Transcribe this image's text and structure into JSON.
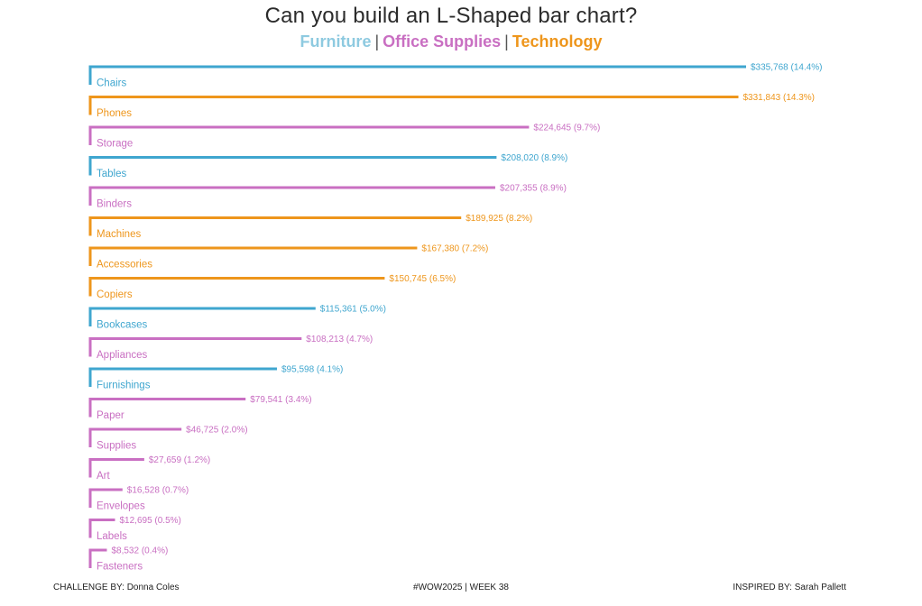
{
  "title": "Can you build an L-Shaped bar chart?",
  "legend": [
    {
      "name": "Furniture",
      "color": "#8ecae0"
    },
    {
      "name": "Office Supplies",
      "color": "#c96fc2"
    },
    {
      "name": "Technology",
      "color": "#ee961c"
    }
  ],
  "legend_separator": "|",
  "footer": {
    "left": "CHALLENGE BY: Donna Coles",
    "center": "#WOW2025  |  WEEK 38",
    "right": "INSPIRED BY: Sarah Pallett"
  },
  "colors": {
    "Furniture": "#3fa6cf",
    "Office Supplies": "#c96fc2",
    "Technology": "#ee961c"
  },
  "chart_data": {
    "type": "bar",
    "orientation": "horizontal",
    "style": "L-shaped",
    "xlim": [
      0,
      335768
    ],
    "categories": [
      "Chairs",
      "Phones",
      "Storage",
      "Tables",
      "Binders",
      "Machines",
      "Accessories",
      "Copiers",
      "Bookcases",
      "Appliances",
      "Furnishings",
      "Paper",
      "Supplies",
      "Art",
      "Envelopes",
      "Labels",
      "Fasteners"
    ],
    "groups": [
      "Furniture",
      "Technology",
      "Office Supplies",
      "Furniture",
      "Office Supplies",
      "Technology",
      "Technology",
      "Technology",
      "Furniture",
      "Office Supplies",
      "Furniture",
      "Office Supplies",
      "Office Supplies",
      "Office Supplies",
      "Office Supplies",
      "Office Supplies",
      "Office Supplies"
    ],
    "values": [
      335768,
      331843,
      224645,
      208020,
      207355,
      189925,
      167380,
      150745,
      115361,
      108213,
      95598,
      79541,
      46725,
      27659,
      16528,
      12695,
      8532
    ],
    "data_labels": [
      "$335,768 (14.4%)",
      "$331,843 (14.3%)",
      "$224,645 (9.7%)",
      "$208,020 (8.9%)",
      "$207,355 (8.9%)",
      "$189,925 (8.2%)",
      "$167,380 (7.2%)",
      "$150,745 (6.5%)",
      "$115,361 (5.0%)",
      "$108,213 (4.7%)",
      "$95,598 (4.1%)",
      "$79,541 (3.4%)",
      "$46,725 (2.0%)",
      "$27,659 (1.2%)",
      "$16,528 (0.7%)",
      "$12,695 (0.5%)",
      "$8,532 (0.4%)"
    ],
    "series": [
      {
        "values": [
          335768,
          331843,
          224645,
          208020,
          207355,
          189925,
          167380,
          150745,
          115361,
          108213,
          95598,
          79541,
          46725,
          27659,
          16528,
          12695,
          8532
        ]
      }
    ]
  }
}
